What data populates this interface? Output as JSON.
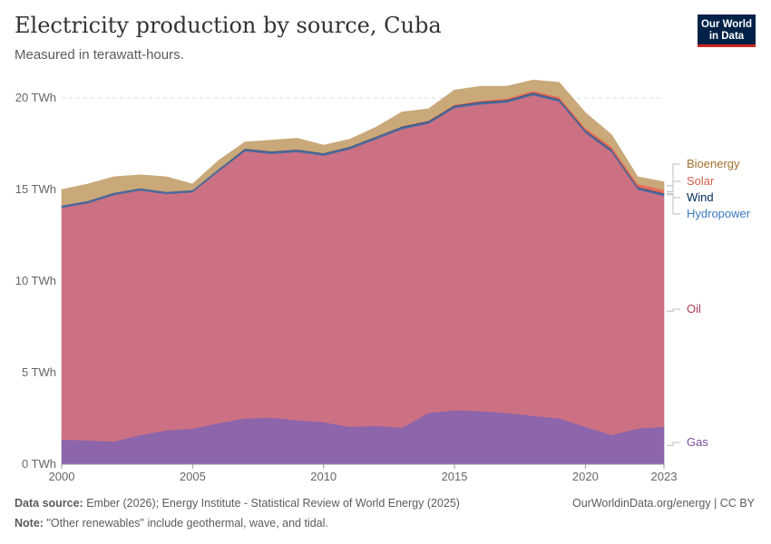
{
  "header": {
    "title": "Electricity production by source, Cuba",
    "subtitle": "Measured in terawatt-hours."
  },
  "logo": {
    "line1": "Our World",
    "line2": "in Data"
  },
  "footer": {
    "source_label": "Data source:",
    "source_text": "Ember (2026); Energy Institute - Statistical Review of World Energy (2025)",
    "note_label": "Note:",
    "note_text": "\"Other renewables\" include geothermal, wave, and tidal.",
    "credit": "OurWorldinData.org/energy | CC BY"
  },
  "chart_data": {
    "type": "area",
    "stacked": true,
    "x": [
      2000,
      2001,
      2002,
      2003,
      2004,
      2005,
      2006,
      2007,
      2008,
      2009,
      2010,
      2011,
      2012,
      2013,
      2014,
      2015,
      2016,
      2017,
      2018,
      2019,
      2020,
      2021,
      2022,
      2023
    ],
    "x_ticks": [
      2000,
      2005,
      2010,
      2015,
      2020,
      2023
    ],
    "y_ticks": [
      0,
      5,
      10,
      15,
      20
    ],
    "y_tick_labels": [
      "0 TWh",
      "5 TWh",
      "10 TWh",
      "15 TWh",
      "20 TWh"
    ],
    "ylim": [
      0,
      20
    ],
    "grid": true,
    "legend_placement": "right, labels at series end",
    "series": [
      {
        "name": "Gas",
        "color": "#8c65ab",
        "values": [
          1.35,
          1.3,
          1.25,
          1.6,
          1.85,
          1.95,
          2.25,
          2.5,
          2.55,
          2.4,
          2.3,
          2.05,
          2.1,
          2.0,
          2.8,
          2.95,
          2.9,
          2.8,
          2.65,
          2.5,
          2.05,
          1.6,
          1.95,
          2.05
        ]
      },
      {
        "name": "Oil",
        "color": "#cc7183",
        "values": [
          12.65,
          12.95,
          13.45,
          13.35,
          12.9,
          12.9,
          13.75,
          14.6,
          14.4,
          14.65,
          14.55,
          15.15,
          15.65,
          16.3,
          15.8,
          16.5,
          16.75,
          16.95,
          17.5,
          17.3,
          16.05,
          15.45,
          13.05,
          12.6
        ]
      },
      {
        "name": "Hydropower",
        "color": "#4c6a9c",
        "values": [
          0.12,
          0.12,
          0.12,
          0.12,
          0.12,
          0.12,
          0.12,
          0.12,
          0.12,
          0.12,
          0.12,
          0.12,
          0.12,
          0.12,
          0.12,
          0.12,
          0.12,
          0.12,
          0.12,
          0.12,
          0.12,
          0.12,
          0.12,
          0.12
        ]
      },
      {
        "name": "Wind",
        "color": "#00295b",
        "values": [
          0.01,
          0.01,
          0.01,
          0.01,
          0.01,
          0.01,
          0.01,
          0.02,
          0.02,
          0.02,
          0.02,
          0.02,
          0.02,
          0.02,
          0.02,
          0.02,
          0.02,
          0.02,
          0.02,
          0.02,
          0.02,
          0.02,
          0.02,
          0.02
        ]
      },
      {
        "name": "Solar",
        "color": "#e56e5a",
        "values": [
          0.0,
          0.0,
          0.0,
          0.0,
          0.0,
          0.0,
          0.0,
          0.0,
          0.0,
          0.0,
          0.0,
          0.0,
          0.0,
          0.01,
          0.02,
          0.04,
          0.06,
          0.08,
          0.1,
          0.12,
          0.13,
          0.15,
          0.17,
          0.2
        ]
      },
      {
        "name": "Bioenergy",
        "color": "#c9a87a",
        "values": [
          0.87,
          0.92,
          0.87,
          0.72,
          0.82,
          0.32,
          0.47,
          0.36,
          0.61,
          0.61,
          0.43,
          0.41,
          0.51,
          0.79,
          0.64,
          0.8,
          0.79,
          0.67,
          0.59,
          0.79,
          0.83,
          0.65,
          0.39,
          0.43
        ]
      }
    ]
  }
}
